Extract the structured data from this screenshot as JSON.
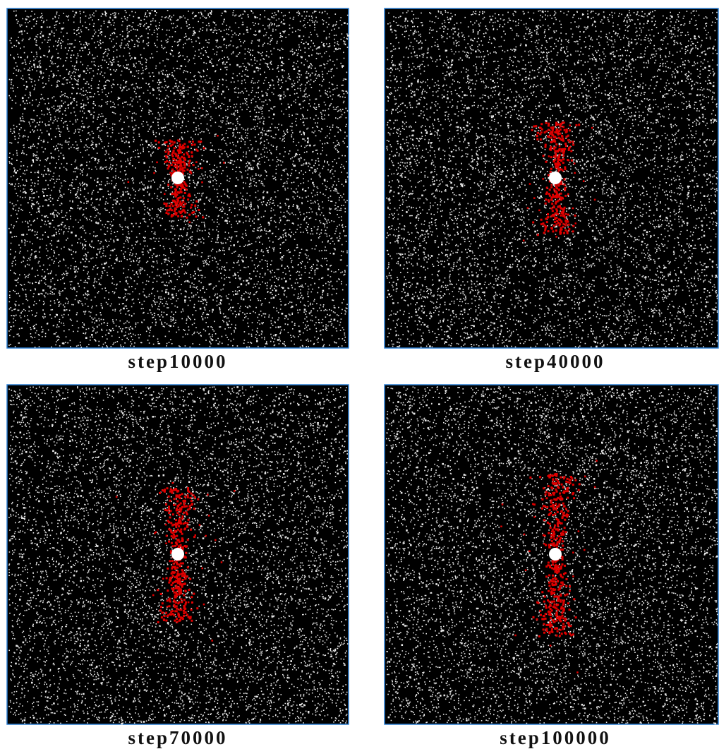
{
  "panels": [
    {
      "label": "step10000"
    },
    {
      "label": "step40000"
    },
    {
      "label": "step70000"
    },
    {
      "label": "step100000"
    }
  ]
}
